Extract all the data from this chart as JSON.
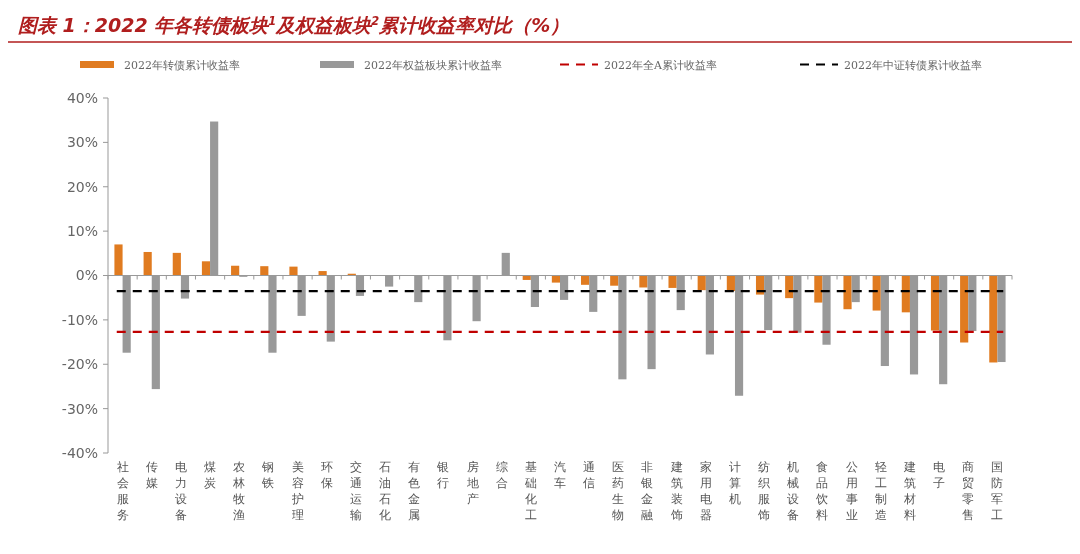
{
  "chart_data": {
    "type": "bar",
    "title": "图表 1：2022 年各转债板块$^{1}$及权益板块$^{2}$累计收益率对比（%）",
    "categories": [
      "社会服务",
      "传媒",
      "电力设备",
      "煤炭",
      "农林牧渔",
      "钢铁",
      "美容护理",
      "环保",
      "交通运输",
      "石油石化",
      "有色金属",
      "银行",
      "房地产",
      "综合",
      "基础化工",
      "汽车",
      "通信",
      "医药生物",
      "非银金融",
      "建筑装饰",
      "家用电器",
      "计算机",
      "纺织服饰",
      "机械设备",
      "食品饮料",
      "公用事业",
      "轻工制造",
      "建筑材料",
      "电子",
      "商贸零售",
      "国防军工"
    ],
    "series": [
      {
        "name": "2022年转债累计收益率",
        "color": "#e07b20",
        "values": [
          7.0,
          5.3,
          5.1,
          3.2,
          2.2,
          2.1,
          2.0,
          1.0,
          0.4,
          null,
          null,
          null,
          null,
          null,
          -1.0,
          -1.6,
          -2.1,
          -2.3,
          -2.7,
          -2.8,
          -3.3,
          -3.5,
          -4.3,
          -5.1,
          -6.1,
          -7.6,
          -7.9,
          -8.3,
          -12.4,
          -15.1,
          -19.6
        ]
      },
      {
        "name": "2022年权益板块累计收益率",
        "color": "#999999",
        "values": [
          -17.4,
          -25.6,
          -5.2,
          34.7,
          -0.3,
          -17.4,
          -9.1,
          -14.9,
          -4.6,
          -2.5,
          -6.0,
          -14.6,
          -10.3,
          5.1,
          -7.1,
          -5.5,
          -8.2,
          -23.4,
          -21.1,
          -7.8,
          -17.8,
          -27.1,
          -12.3,
          -12.9,
          -15.6,
          -6.0,
          -20.4,
          -22.3,
          -24.5,
          -12.5,
          -19.5
        ]
      }
    ],
    "ref_lines": [
      {
        "axis": "y",
        "value": -12.7,
        "label": "2022年全A累计收益率",
        "color": "#c00000",
        "line_style": "dashed"
      },
      {
        "axis": "y",
        "value": -3.5,
        "label": "2022年中证转债累计收益率",
        "color": "#000000",
        "line_style": "dashed"
      }
    ],
    "ylim": [
      -40,
      40
    ],
    "yticks": [
      {
        "value": -40,
        "label": "-40%"
      },
      {
        "value": -30,
        "label": "-30%"
      },
      {
        "value": -20,
        "label": "-20%"
      },
      {
        "value": -10,
        "label": "-10%"
      },
      {
        "value": 0,
        "label": "0%"
      },
      {
        "value": 10,
        "label": "10%"
      },
      {
        "value": 20,
        "label": "20%"
      },
      {
        "value": 30,
        "label": "30%"
      },
      {
        "value": 40,
        "label": "40%"
      }
    ],
    "legend": "top"
  }
}
